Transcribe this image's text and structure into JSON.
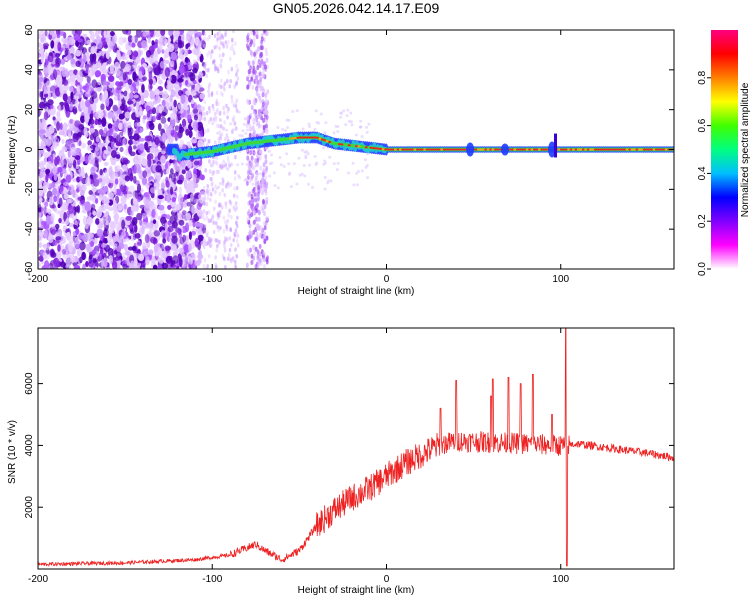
{
  "figure_title": "GN05.2026.042.14.17.E09",
  "chart_data": [
    {
      "type": "heatmap",
      "name": "spectrogram",
      "xlabel": "Height of straight line (km)",
      "ylabel": "Frequency (Hz)",
      "xlim": [
        -200,
        165
      ],
      "ylim": [
        -60,
        60
      ],
      "xticks": [
        -200,
        -100,
        0,
        100
      ],
      "yticks": [
        -60,
        -40,
        -20,
        0,
        20,
        40,
        60
      ],
      "colorbar": {
        "label": "Normalized spectral amplitude",
        "range": [
          0,
          1
        ],
        "ticks": [
          0.0,
          0.2,
          0.4,
          0.6,
          0.8
        ],
        "colors": [
          "#ffffff",
          "#ff00ff",
          "#8000ff",
          "#0000ff",
          "#00bfff",
          "#00ff80",
          "#40ff00",
          "#ffff00",
          "#ff8000",
          "#ff0000",
          "#ff0080"
        ]
      },
      "ridge": [
        {
          "x": -120,
          "f": -3
        },
        {
          "x": -110,
          "f": -2
        },
        {
          "x": -100,
          "f": -1
        },
        {
          "x": -90,
          "f": 1
        },
        {
          "x": -80,
          "f": 3
        },
        {
          "x": -70,
          "f": 4
        },
        {
          "x": -60,
          "f": 5
        },
        {
          "x": -50,
          "f": 6
        },
        {
          "x": -40,
          "f": 6
        },
        {
          "x": -30,
          "f": 3
        },
        {
          "x": -20,
          "f": 2
        },
        {
          "x": -10,
          "f": 1
        },
        {
          "x": 0,
          "f": 0
        },
        {
          "x": 165,
          "f": 0
        }
      ]
    },
    {
      "type": "line",
      "name": "snr",
      "xlabel": "Height of straight line (km)",
      "ylabel": "SNR (10 * v/v)",
      "xlim": [
        -200,
        165
      ],
      "ylim": [
        0,
        7800
      ],
      "xticks": [
        -200,
        -100,
        0,
        100
      ],
      "yticks": [
        2000,
        4000,
        6000
      ],
      "color": "#ee2222",
      "series_trend": [
        {
          "x": -200,
          "y": 150
        },
        {
          "x": -150,
          "y": 200
        },
        {
          "x": -110,
          "y": 300
        },
        {
          "x": -90,
          "y": 450
        },
        {
          "x": -75,
          "y": 800
        },
        {
          "x": -70,
          "y": 600
        },
        {
          "x": -60,
          "y": 300
        },
        {
          "x": -50,
          "y": 600
        },
        {
          "x": -40,
          "y": 1400
        },
        {
          "x": -30,
          "y": 1900
        },
        {
          "x": -20,
          "y": 2300
        },
        {
          "x": -10,
          "y": 2600
        },
        {
          "x": 0,
          "y": 3000
        },
        {
          "x": 10,
          "y": 3400
        },
        {
          "x": 20,
          "y": 3700
        },
        {
          "x": 30,
          "y": 4000
        },
        {
          "x": 40,
          "y": 4150
        },
        {
          "x": 60,
          "y": 4100
        },
        {
          "x": 80,
          "y": 4050
        },
        {
          "x": 100,
          "y": 4000
        },
        {
          "x": 110,
          "y": 4050
        },
        {
          "x": 130,
          "y": 3900
        },
        {
          "x": 150,
          "y": 3750
        },
        {
          "x": 165,
          "y": 3600
        }
      ],
      "spikes": [
        {
          "x": 31,
          "y": 5200
        },
        {
          "x": 40,
          "y": 6100
        },
        {
          "x": 60,
          "y": 5600
        },
        {
          "x": 61,
          "y": 6150
        },
        {
          "x": 70,
          "y": 6200
        },
        {
          "x": 77,
          "y": 6000
        },
        {
          "x": 84,
          "y": 6300
        },
        {
          "x": 95,
          "y": 5000
        },
        {
          "x": 103,
          "y": 7800
        },
        {
          "x": 103.5,
          "y": 100
        }
      ]
    }
  ]
}
